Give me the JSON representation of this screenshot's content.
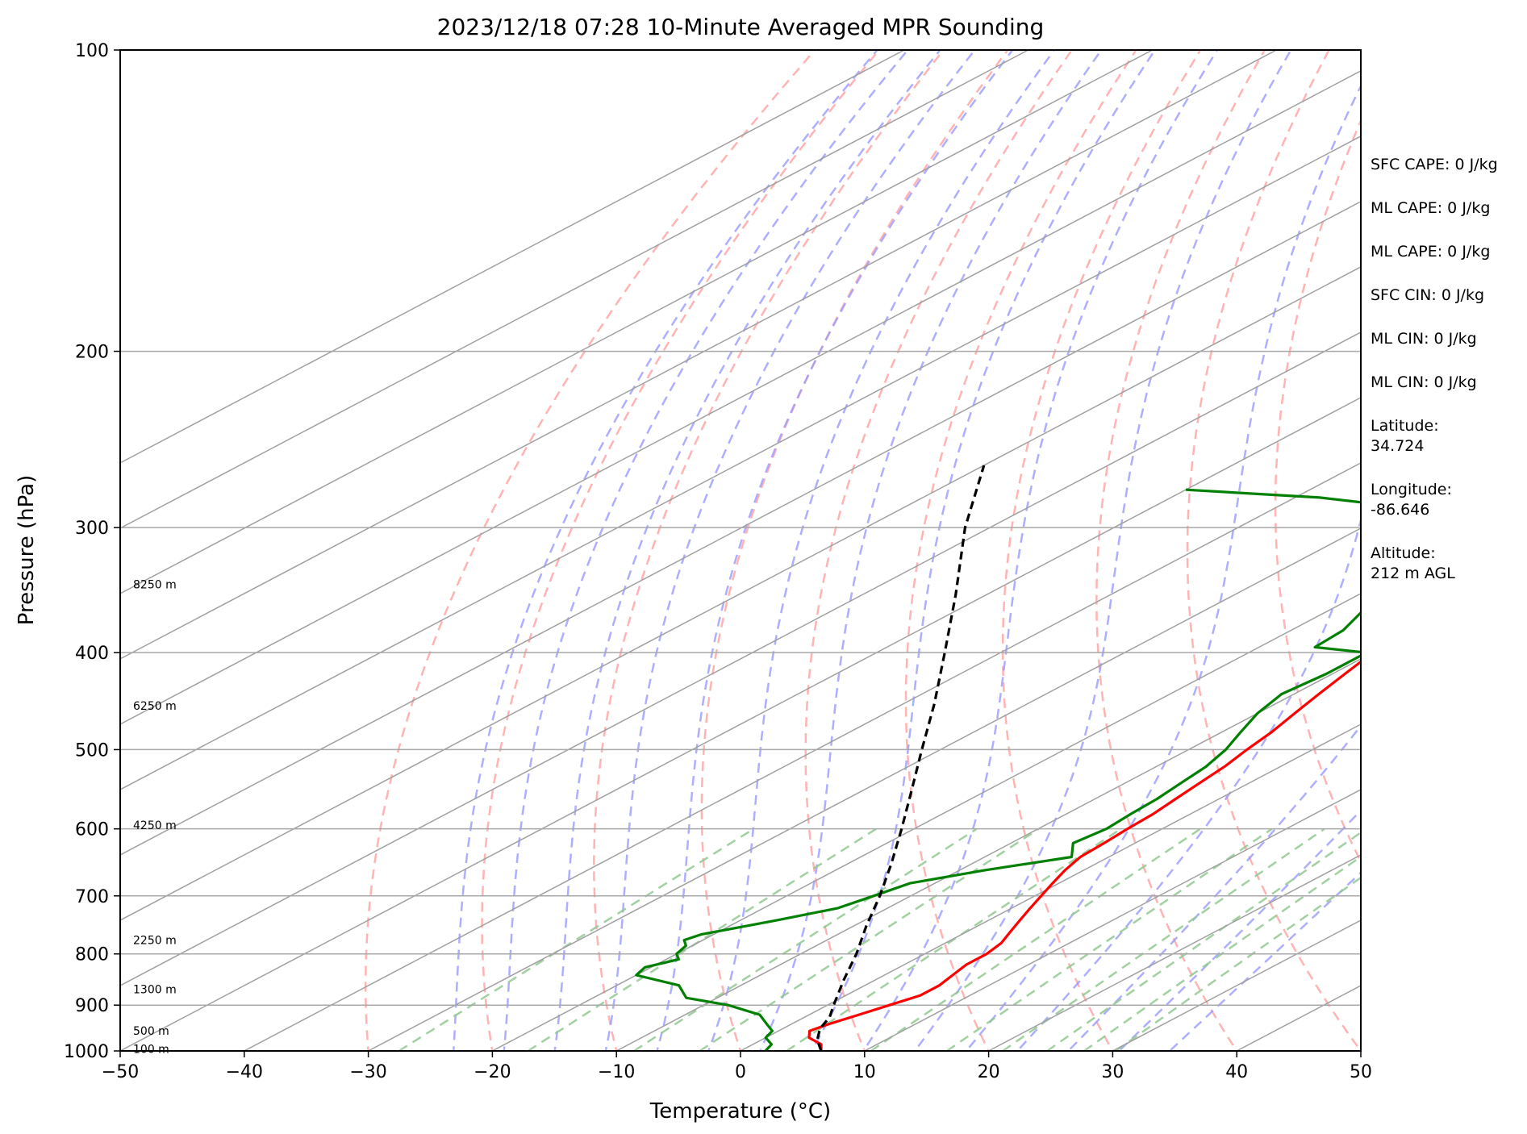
{
  "chart_data": {
    "type": "line",
    "title": "2023/12/18 07:28 10-Minute Averaged MPR Sounding",
    "xlabel": "Temperature (°C)",
    "ylabel": "Pressure (hPa)",
    "xlim": [
      -50,
      50
    ],
    "ylim": [
      1000,
      100
    ],
    "y_scale": "log",
    "skew": true,
    "x_ticks": [
      "−50",
      "−40",
      "−30",
      "−20",
      "−10",
      "0",
      "10",
      "20",
      "30",
      "40",
      "50"
    ],
    "x_tick_values": [
      -50,
      -40,
      -30,
      -20,
      -10,
      0,
      10,
      20,
      30,
      40,
      50
    ],
    "y_ticks": [
      "100",
      "200",
      "300",
      "400",
      "500",
      "600",
      "700",
      "800",
      "900",
      "1000"
    ],
    "y_tick_values": [
      100,
      200,
      300,
      400,
      500,
      600,
      700,
      800,
      900,
      1000
    ],
    "grid": true,
    "series": [
      {
        "color": "#ff0000",
        "style": "solid",
        "points": [
          [
            1000,
            6.5
          ],
          [
            985,
            5.5
          ],
          [
            970,
            3.5
          ],
          [
            955,
            2.5
          ],
          [
            940,
            3.0
          ],
          [
            920,
            4.0
          ],
          [
            900,
            5.0
          ],
          [
            880,
            6.0
          ],
          [
            860,
            6.0
          ],
          [
            840,
            5.5
          ],
          [
            820,
            5.0
          ],
          [
            800,
            5.0
          ],
          [
            780,
            4.5
          ],
          [
            760,
            3.5
          ],
          [
            740,
            2.5
          ],
          [
            720,
            1.5
          ],
          [
            700,
            0.5
          ],
          [
            680,
            -0.5
          ],
          [
            660,
            -1.5
          ],
          [
            640,
            -2.3
          ],
          [
            620,
            -2.5
          ],
          [
            600,
            -2.8
          ],
          [
            580,
            -3.0
          ],
          [
            560,
            -3.5
          ],
          [
            540,
            -4.0
          ],
          [
            520,
            -4.5
          ],
          [
            500,
            -5.3
          ],
          [
            480,
            -6.0
          ],
          [
            460,
            -7.0
          ],
          [
            440,
            -8.0
          ],
          [
            420,
            -9.0
          ],
          [
            400,
            -10.0
          ],
          [
            380,
            -11.0
          ],
          [
            360,
            -12.0
          ],
          [
            340,
            -13.0
          ],
          [
            320,
            -14.0
          ],
          [
            300,
            -15.5
          ],
          [
            280,
            -17.0
          ],
          [
            265,
            -18.5
          ],
          [
            255,
            -20.0
          ]
        ]
      },
      {
        "color": "#008000",
        "style": "solid",
        "points": [
          [
            1000,
            2.0
          ],
          [
            985,
            1.5
          ],
          [
            970,
            0.0
          ],
          [
            955,
            -0.5
          ],
          [
            940,
            -2.0
          ],
          [
            920,
            -4.0
          ],
          [
            900,
            -8.0
          ],
          [
            885,
            -12.5
          ],
          [
            860,
            -15.0
          ],
          [
            840,
            -20.0
          ],
          [
            825,
            -20.5
          ],
          [
            810,
            -19.0
          ],
          [
            800,
            -20.0
          ],
          [
            785,
            -20.5
          ],
          [
            775,
            -21.5
          ],
          [
            765,
            -21.0
          ],
          [
            740,
            -17.0
          ],
          [
            720,
            -14.0
          ],
          [
            700,
            -13.0
          ],
          [
            680,
            -12.0
          ],
          [
            660,
            -8.0
          ],
          [
            640,
            -3.0
          ],
          [
            620,
            -5.0
          ],
          [
            600,
            -4.5
          ],
          [
            580,
            -4.8
          ],
          [
            560,
            -5.0
          ],
          [
            540,
            -5.5
          ],
          [
            520,
            -6.0
          ],
          [
            500,
            -7.0
          ],
          [
            480,
            -8.5
          ],
          [
            460,
            -10.0
          ],
          [
            440,
            -11.0
          ],
          [
            420,
            -10.5
          ],
          [
            400,
            -10.5
          ],
          [
            395,
            -15.5
          ],
          [
            380,
            -15.8
          ],
          [
            360,
            -17.5
          ],
          [
            340,
            -18.5
          ],
          [
            320,
            -22.0
          ],
          [
            310,
            -23.0
          ],
          [
            300,
            -23.0
          ],
          [
            290,
            -25.0
          ],
          [
            280,
            -38.0
          ],
          [
            275,
            -50.0
          ]
        ]
      },
      {
        "color": "#000000",
        "style": "dashed",
        "points": [
          [
            1000,
            6.5
          ],
          [
            975,
            4.5
          ],
          [
            950,
            3.0
          ],
          [
            925,
            2.0
          ],
          [
            900,
            0.5
          ],
          [
            850,
            -2.5
          ],
          [
            800,
            -5.5
          ],
          [
            750,
            -9.0
          ],
          [
            700,
            -12.5
          ],
          [
            650,
            -16.5
          ],
          [
            600,
            -21.0
          ],
          [
            550,
            -26.0
          ],
          [
            500,
            -31.5
          ],
          [
            450,
            -37.5
          ],
          [
            400,
            -44.5
          ],
          [
            350,
            -52.5
          ],
          [
            300,
            -62.0
          ],
          [
            260,
            -70.0
          ]
        ]
      }
    ],
    "height_labels": [
      {
        "label": "100 m",
        "p": 995
      },
      {
        "label": "500 m",
        "p": 955
      },
      {
        "label": "1300 m",
        "p": 868
      },
      {
        "label": "2250 m",
        "p": 775
      },
      {
        "label": "4250 m",
        "p": 595
      },
      {
        "label": "6250 m",
        "p": 452
      },
      {
        "label": "8250 m",
        "p": 342
      }
    ],
    "side_text": [
      {
        "id": "sfc_cape",
        "lines": [
          "SFC CAPE: 0 J/kg"
        ]
      },
      {
        "id": "ml_cape_1",
        "lines": [
          "ML CAPE: 0 J/kg"
        ]
      },
      {
        "id": "ml_cape_2",
        "lines": [
          "ML CAPE: 0 J/kg"
        ]
      },
      {
        "id": "sfc_cin",
        "lines": [
          "SFC CIN: 0 J/kg"
        ]
      },
      {
        "id": "ml_cin_1",
        "lines": [
          "ML CIN: 0 J/kg"
        ]
      },
      {
        "id": "ml_cin_2",
        "lines": [
          "ML CIN: 0 J/kg"
        ]
      },
      {
        "id": "latitude",
        "lines": [
          "Latitude:",
          "34.724"
        ]
      },
      {
        "id": "longitude",
        "lines": [
          "Longitude:",
          "-86.646"
        ]
      },
      {
        "id": "altitude",
        "lines": [
          "Altitude:",
          "212 m AGL"
        ]
      }
    ],
    "reference_lines": {
      "isotherm_color": "#a0a0a0",
      "dry_adiabat_color": "#ff9a9a",
      "moist_adiabat_color": "#9a9aff",
      "mixing_ratio_color": "#90c890"
    }
  }
}
